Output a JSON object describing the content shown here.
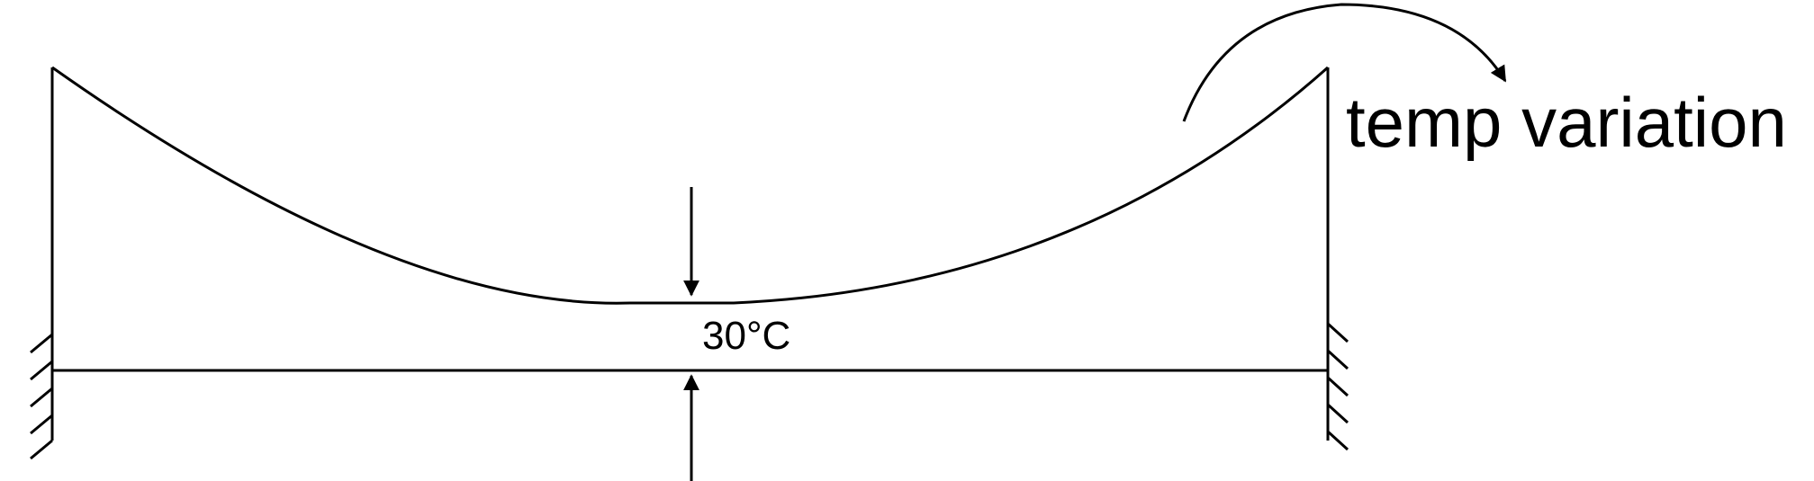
{
  "diagram": {
    "temperature_label": "30°C",
    "variation_label": "temp variation",
    "stroke_color": "#000000",
    "background_color": "#ffffff"
  }
}
